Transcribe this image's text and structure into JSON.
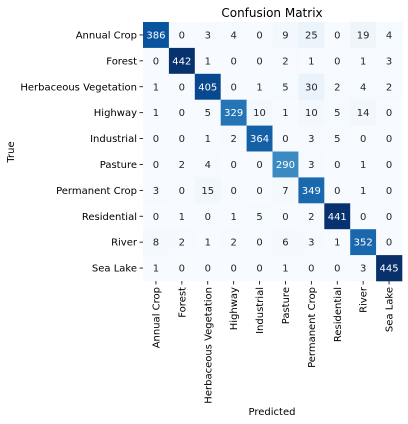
{
  "chart_data": {
    "type": "heatmap",
    "title": "Confusion Matrix",
    "xlabel": "Predicted",
    "ylabel": "True",
    "x_categories": [
      "Annual Crop",
      "Forest",
      "Herbaceous Vegetation",
      "Highway",
      "Industrial",
      "Pasture",
      "Permanent Crop",
      "Residential",
      "River",
      "Sea Lake"
    ],
    "y_categories": [
      "Annual Crop",
      "Forest",
      "Herbaceous Vegetation",
      "Highway",
      "Industrial",
      "Pasture",
      "Permanent Crop",
      "Residential",
      "River",
      "Sea Lake"
    ],
    "values": [
      [
        386,
        0,
        3,
        4,
        0,
        9,
        25,
        0,
        19,
        4
      ],
      [
        0,
        442,
        1,
        0,
        0,
        2,
        1,
        0,
        1,
        3
      ],
      [
        1,
        0,
        405,
        0,
        1,
        5,
        30,
        2,
        4,
        2
      ],
      [
        1,
        0,
        5,
        329,
        10,
        1,
        10,
        5,
        14,
        0
      ],
      [
        0,
        0,
        1,
        2,
        364,
        0,
        3,
        5,
        0,
        0
      ],
      [
        0,
        2,
        4,
        0,
        0,
        290,
        3,
        0,
        1,
        0
      ],
      [
        3,
        0,
        15,
        0,
        0,
        7,
        349,
        0,
        1,
        0
      ],
      [
        0,
        1,
        0,
        1,
        5,
        0,
        2,
        441,
        0,
        0
      ],
      [
        8,
        2,
        1,
        2,
        0,
        6,
        3,
        1,
        352,
        0
      ],
      [
        1,
        0,
        0,
        0,
        0,
        1,
        0,
        0,
        3,
        445
      ]
    ],
    "colormap": "Blues",
    "color_low": "#f7fbff",
    "color_high": "#08306b",
    "grid": false,
    "legend": "none"
  }
}
